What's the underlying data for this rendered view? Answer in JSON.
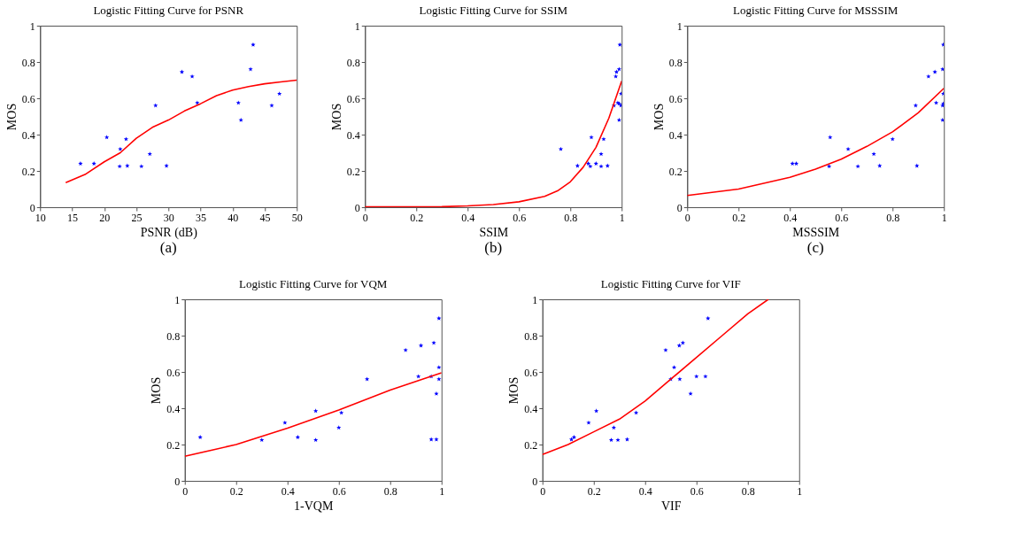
{
  "chart_data": [
    {
      "type": "scatter",
      "title": "Logistic Fitting Curve for PSNR",
      "xlabel": "PSNR (dB)",
      "ylabel": "MOS",
      "annotations": [
        "(a)"
      ],
      "xlim": [
        10,
        50
      ],
      "xticks": [
        10,
        15,
        20,
        25,
        30,
        35,
        40,
        45,
        50
      ],
      "ylim": [
        0,
        1
      ],
      "yticks": [
        0,
        0.2,
        0.4,
        0.6,
        0.8,
        1
      ],
      "grid": false,
      "series": [
        {
          "marker": "star",
          "color": "#0000ff",
          "x": [
            16.3,
            18.4,
            20.4,
            22.5,
            22.4,
            23.4,
            23.6,
            25.8,
            27.1,
            28,
            29.7,
            32.1,
            33.7,
            34.5,
            40.9,
            41.3,
            42.8,
            43.2,
            46.1,
            47.3
          ],
          "values": [
            0.24,
            0.24,
            0.385,
            0.32,
            0.225,
            0.375,
            0.228,
            0.225,
            0.293,
            0.56,
            0.228,
            0.745,
            0.72,
            0.575,
            0.575,
            0.48,
            0.76,
            0.895,
            0.56,
            0.625
          ]
        },
        {
          "type": "line",
          "color": "#ff0000",
          "x": [
            14,
            17,
            20,
            22.5,
            25,
            27.5,
            30,
            32.5,
            35,
            37.5,
            40,
            42.5,
            45,
            47.5,
            50
          ],
          "values": [
            0.135,
            0.18,
            0.25,
            0.3,
            0.38,
            0.44,
            0.48,
            0.53,
            0.57,
            0.615,
            0.645,
            0.665,
            0.68,
            0.69,
            0.7
          ]
        }
      ]
    },
    {
      "type": "scatter",
      "title": "Logistic Fitting Curve for SSIM",
      "xlabel": "SSIM",
      "ylabel": "MOS",
      "annotations": [
        "(b)"
      ],
      "xlim": [
        0,
        1
      ],
      "xticks": [
        0,
        0.2,
        0.4,
        0.6,
        0.8,
        1
      ],
      "ylim": [
        0,
        1
      ],
      "yticks": [
        0,
        0.2,
        0.4,
        0.6,
        0.8,
        1
      ],
      "grid": false,
      "series": [
        {
          "marker": "star",
          "color": "#0000ff",
          "x": [
            0.763,
            0.828,
            0.87,
            0.878,
            0.882,
            0.9,
            0.92,
            0.92,
            0.93,
            0.945,
            0.97,
            0.977,
            0.98,
            0.985,
            0.99,
            0.99,
            0.99,
            0.993,
            0.997,
            0.998
          ],
          "values": [
            0.32,
            0.228,
            0.24,
            0.225,
            0.385,
            0.24,
            0.225,
            0.293,
            0.375,
            0.228,
            0.56,
            0.72,
            0.745,
            0.575,
            0.76,
            0.57,
            0.48,
            0.895,
            0.56,
            0.625
          ]
        },
        {
          "type": "line",
          "color": "#ff0000",
          "x": [
            0,
            0.3,
            0.4,
            0.5,
            0.6,
            0.7,
            0.75,
            0.8,
            0.85,
            0.9,
            0.95,
            1
          ],
          "values": [
            0.002,
            0.003,
            0.007,
            0.015,
            0.03,
            0.06,
            0.09,
            0.14,
            0.22,
            0.33,
            0.49,
            0.695
          ]
        }
      ]
    },
    {
      "type": "scatter",
      "title": "Logistic Fitting Curve for MSSSIM",
      "xlabel": "MSSSIM",
      "ylabel": "MOS",
      "annotations": [
        "(c)"
      ],
      "xlim": [
        0,
        1
      ],
      "xticks": [
        0,
        0.2,
        0.4,
        0.6,
        0.8,
        1
      ],
      "ylim": [
        0,
        1
      ],
      "yticks": [
        0,
        0.2,
        0.4,
        0.6,
        0.8,
        1
      ],
      "grid": false,
      "series": [
        {
          "marker": "star",
          "color": "#0000ff",
          "x": [
            0.41,
            0.425,
            0.553,
            0.557,
            0.627,
            0.665,
            0.727,
            0.75,
            0.8,
            0.89,
            0.895,
            0.94,
            0.965,
            0.97,
            0.995,
            0.995,
            0.995,
            0.998,
            0.998,
            0.998
          ],
          "values": [
            0.24,
            0.24,
            0.225,
            0.385,
            0.32,
            0.225,
            0.293,
            0.228,
            0.375,
            0.56,
            0.228,
            0.72,
            0.745,
            0.575,
            0.76,
            0.48,
            0.56,
            0.895,
            0.57,
            0.625
          ]
        },
        {
          "type": "line",
          "color": "#ff0000",
          "x": [
            0,
            0.2,
            0.4,
            0.5,
            0.6,
            0.7,
            0.8,
            0.9,
            1
          ],
          "values": [
            0.065,
            0.1,
            0.165,
            0.21,
            0.265,
            0.335,
            0.415,
            0.52,
            0.655
          ]
        }
      ]
    },
    {
      "type": "scatter",
      "title": "Logistic Fitting Curve for VQM",
      "xlabel": "1-VQM",
      "ylabel": "MOS",
      "xlim": [
        0,
        1
      ],
      "xticks": [
        0,
        0.2,
        0.4,
        0.6,
        0.8,
        1
      ],
      "ylim": [
        0,
        1
      ],
      "yticks": [
        0,
        0.2,
        0.4,
        0.6,
        0.8,
        1
      ],
      "grid": false,
      "series": [
        {
          "marker": "star",
          "color": "#0000ff",
          "x": [
            0.06,
            0.3,
            0.39,
            0.44,
            0.51,
            0.51,
            0.6,
            0.61,
            0.71,
            0.86,
            0.91,
            0.92,
            0.96,
            0.96,
            0.97,
            0.98,
            0.98,
            0.99,
            0.99,
            0.99
          ],
          "values": [
            0.24,
            0.225,
            0.32,
            0.24,
            0.385,
            0.225,
            0.293,
            0.375,
            0.56,
            0.72,
            0.575,
            0.745,
            0.575,
            0.228,
            0.76,
            0.48,
            0.228,
            0.895,
            0.625,
            0.56
          ]
        },
        {
          "type": "line",
          "color": "#ff0000",
          "x": [
            0,
            0.2,
            0.4,
            0.6,
            0.8,
            1
          ],
          "values": [
            0.135,
            0.2,
            0.29,
            0.39,
            0.5,
            0.595
          ]
        }
      ]
    },
    {
      "type": "scatter",
      "title": "Logistic Fitting Curve for VIF",
      "xlabel": "VIF",
      "ylabel": "MOS",
      "xlim": [
        0,
        1
      ],
      "xticks": [
        0,
        0.2,
        0.4,
        0.6,
        0.8,
        1
      ],
      "ylim": [
        0,
        1
      ],
      "yticks": [
        0,
        0.2,
        0.4,
        0.6,
        0.8,
        1
      ],
      "grid": false,
      "series": [
        {
          "marker": "star",
          "color": "#0000ff",
          "x": [
            0.113,
            0.123,
            0.18,
            0.21,
            0.268,
            0.278,
            0.294,
            0.33,
            0.365,
            0.48,
            0.5,
            0.513,
            0.533,
            0.535,
            0.547,
            0.577,
            0.6,
            0.635,
            0.645
          ],
          "values": [
            0.228,
            0.24,
            0.32,
            0.385,
            0.225,
            0.293,
            0.225,
            0.228,
            0.375,
            0.72,
            0.56,
            0.625,
            0.745,
            0.56,
            0.76,
            0.48,
            0.575,
            0.575,
            0.895
          ]
        },
        {
          "type": "line",
          "color": "#ff0000",
          "x": [
            0,
            0.1,
            0.2,
            0.3,
            0.4,
            0.5,
            0.6,
            0.7,
            0.8,
            0.88
          ],
          "values": [
            0.145,
            0.2,
            0.27,
            0.34,
            0.44,
            0.56,
            0.68,
            0.8,
            0.92,
            1.0
          ]
        }
      ]
    }
  ]
}
